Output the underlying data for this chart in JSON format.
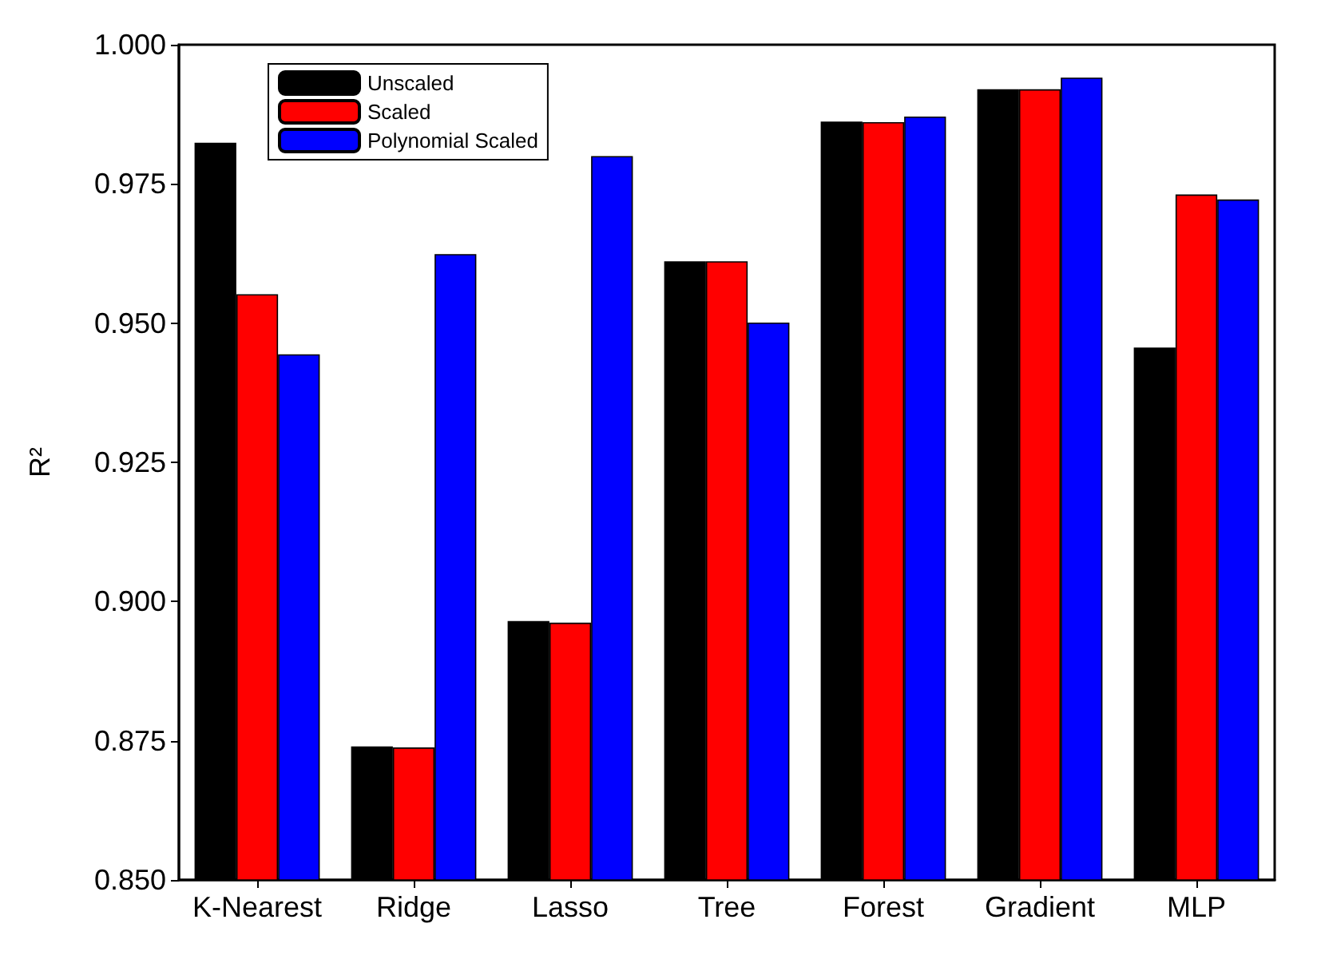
{
  "chart_data": {
    "type": "bar",
    "ylabel": "R²",
    "categories": [
      "K-Nearest",
      "Ridge",
      "Lasso",
      "Tree",
      "Forest",
      "Gradient",
      "MLP"
    ],
    "series": [
      {
        "name": "Unscaled",
        "color": "#000000",
        "values": [
          0.9824,
          0.874,
          0.8965,
          0.9611,
          0.9862,
          0.992,
          0.9456
        ]
      },
      {
        "name": "Scaled",
        "color": "#ff0000",
        "values": [
          0.9552,
          0.8738,
          0.8962,
          0.9611,
          0.9861,
          0.992,
          0.9731
        ]
      },
      {
        "name": "Polynomial Scaled",
        "color": "#0000ff",
        "values": [
          0.9444,
          0.9624,
          0.98,
          0.9501,
          0.9871,
          0.9941,
          0.9722
        ]
      }
    ],
    "ylim": [
      0.85,
      1.0
    ],
    "yticks": [
      {
        "value": 0.85,
        "label": "0.850"
      },
      0.875,
      {
        "value": 0.9,
        "label": "0.900"
      },
      0.925,
      {
        "value": 0.95,
        "label": "0.950"
      },
      0.975,
      {
        "value": 1.0,
        "label": "1.000"
      }
    ],
    "grid": false,
    "legend": "top left"
  }
}
